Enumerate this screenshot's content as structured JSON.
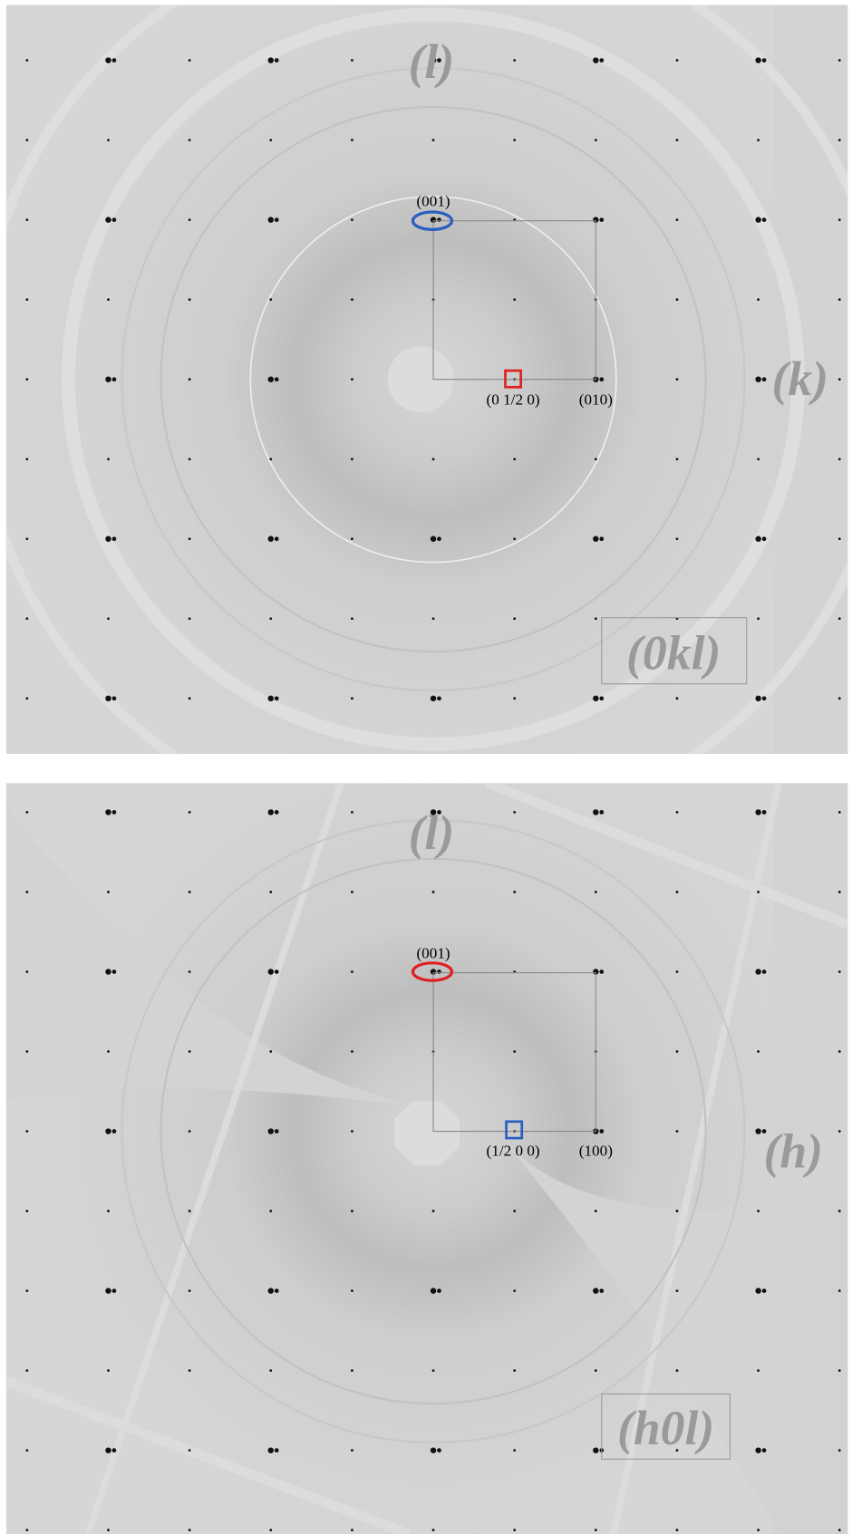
{
  "panels": [
    {
      "vertical_axis": "(l)",
      "horizontal_axis": "(k)",
      "plane": "(0kl)",
      "top_label": "(001)",
      "half_label": "(0 1/2 0)",
      "right_label": "(010)"
    },
    {
      "vertical_axis": "(l)",
      "horizontal_axis": "(h)",
      "plane": "(h0l)",
      "top_label": "(001)",
      "half_label": "(1/2 0 0)",
      "right_label": "(100)"
    }
  ]
}
